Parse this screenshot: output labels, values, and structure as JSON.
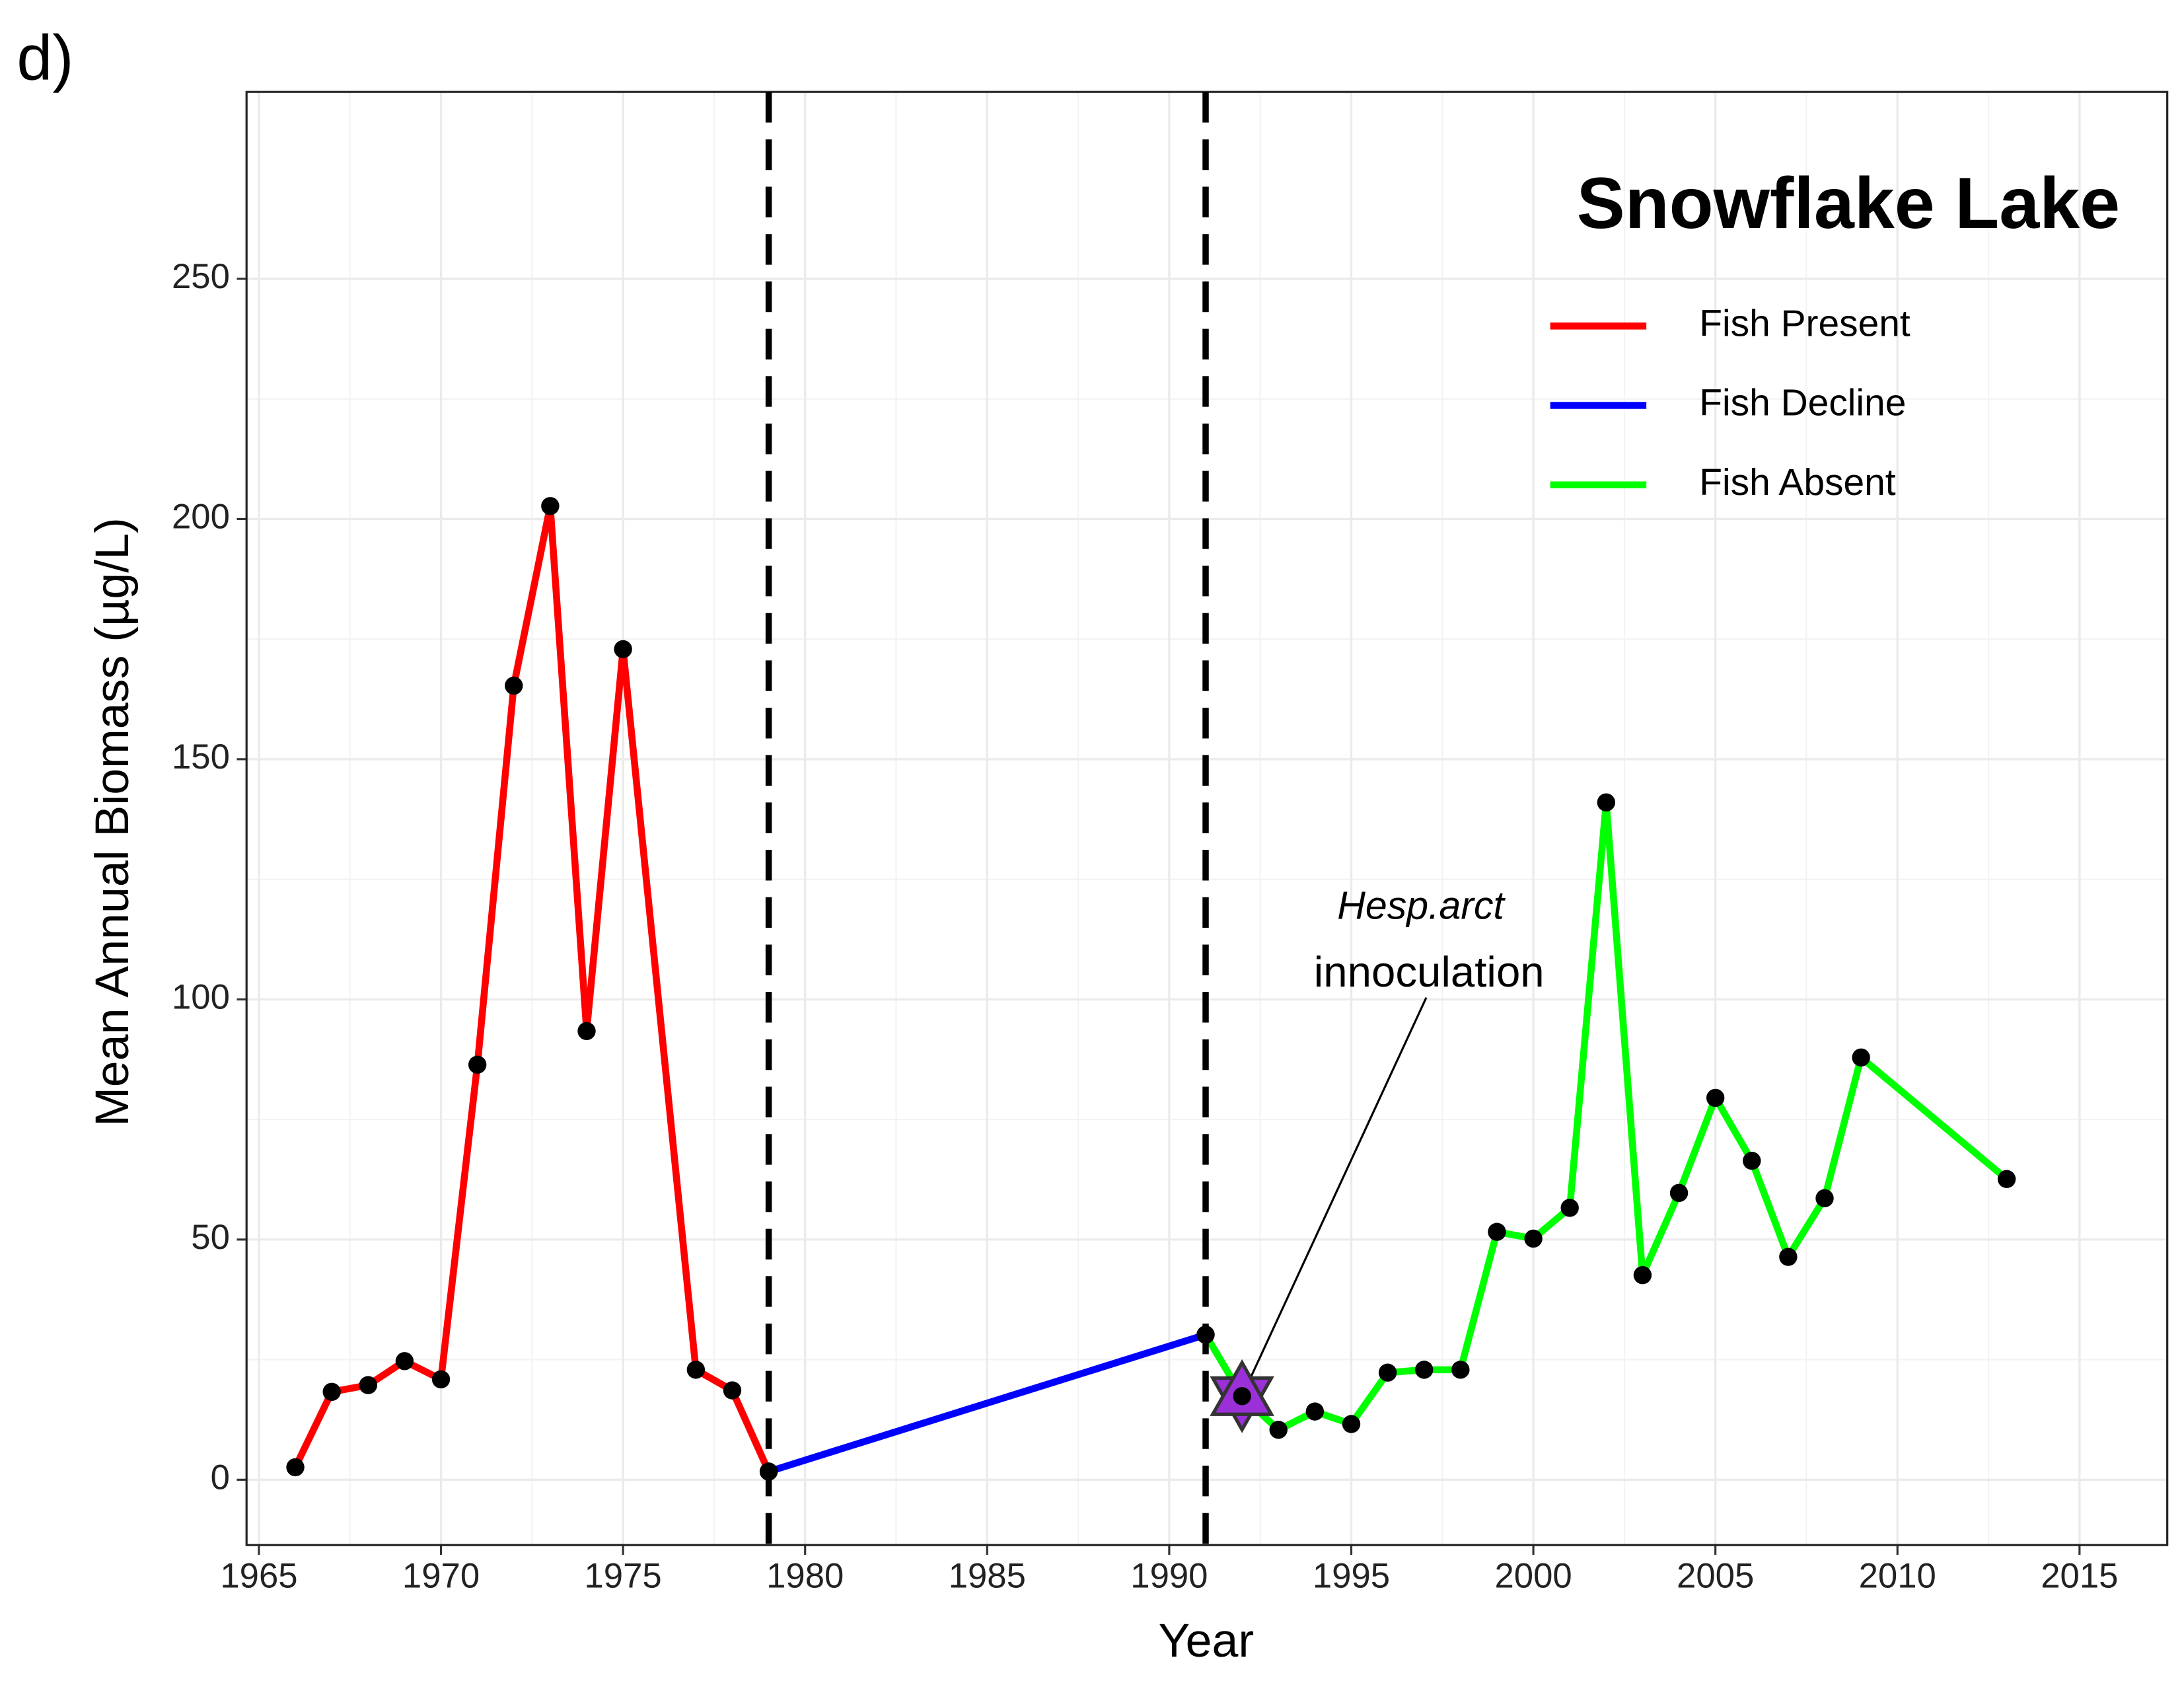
{
  "chart_data": {
    "type": "line",
    "panel_label": "d)",
    "title": "Snowflake Lake",
    "x_label": "Year",
    "y_label": "Mean Annual Biomass (µg/L)",
    "x": [
      1966,
      1967,
      1968,
      1969,
      1970,
      1971,
      1972,
      1973,
      1974,
      1975,
      1977,
      1978,
      1979,
      1991,
      1992,
      1993,
      1994,
      1995,
      1996,
      1997,
      1998,
      1999,
      2000,
      2001,
      2002,
      2003,
      2004,
      2005,
      2006,
      2007,
      2008,
      2009,
      2013
    ],
    "series": [
      {
        "name": "Fish Present",
        "color": "#ff0000",
        "values": [
          2.6,
          18.3,
          19.7,
          24.7,
          20.9,
          86.4,
          165.3,
          202.7,
          93.4,
          172.9,
          22.9,
          18.6,
          1.7,
          null,
          null,
          null,
          null,
          null,
          null,
          null,
          null,
          null,
          null,
          null,
          null,
          null,
          null,
          null,
          null,
          null,
          null,
          null,
          null
        ]
      },
      {
        "name": "Fish Decline",
        "color": "#0000ff",
        "values": [
          null,
          null,
          null,
          null,
          null,
          null,
          null,
          null,
          null,
          null,
          null,
          null,
          1.7,
          30.2,
          null,
          null,
          null,
          null,
          null,
          null,
          null,
          null,
          null,
          null,
          null,
          null,
          null,
          null,
          null,
          null,
          null,
          null,
          null
        ]
      },
      {
        "name": "Fish Absent",
        "color": "#00ff00",
        "values": [
          null,
          null,
          null,
          null,
          null,
          null,
          null,
          null,
          null,
          null,
          null,
          null,
          null,
          30.2,
          17.4,
          10.4,
          14.2,
          11.6,
          22.3,
          22.9,
          22.9,
          51.6,
          50.2,
          56.6,
          141,
          42.6,
          59.7,
          79.5,
          66.4,
          46.4,
          58.6,
          87.9,
          62.6
        ]
      }
    ],
    "vlines": [
      1979,
      1991
    ],
    "annotation": {
      "italic_text": "Hesp.arct",
      "text": "innoculation",
      "x": 1992,
      "y": 17.4,
      "marker_color": "#9b30d9"
    },
    "xlim": [
      1964.66,
      2017.41
    ],
    "ylim": [
      -13.6,
      288.9
    ],
    "xticks": [
      1965,
      1970,
      1975,
      1980,
      1985,
      1990,
      1995,
      2000,
      2005,
      2010,
      2015
    ],
    "yticks": [
      0,
      50,
      100,
      150,
      200,
      250
    ],
    "grid": true,
    "legend_position": "upper right"
  }
}
